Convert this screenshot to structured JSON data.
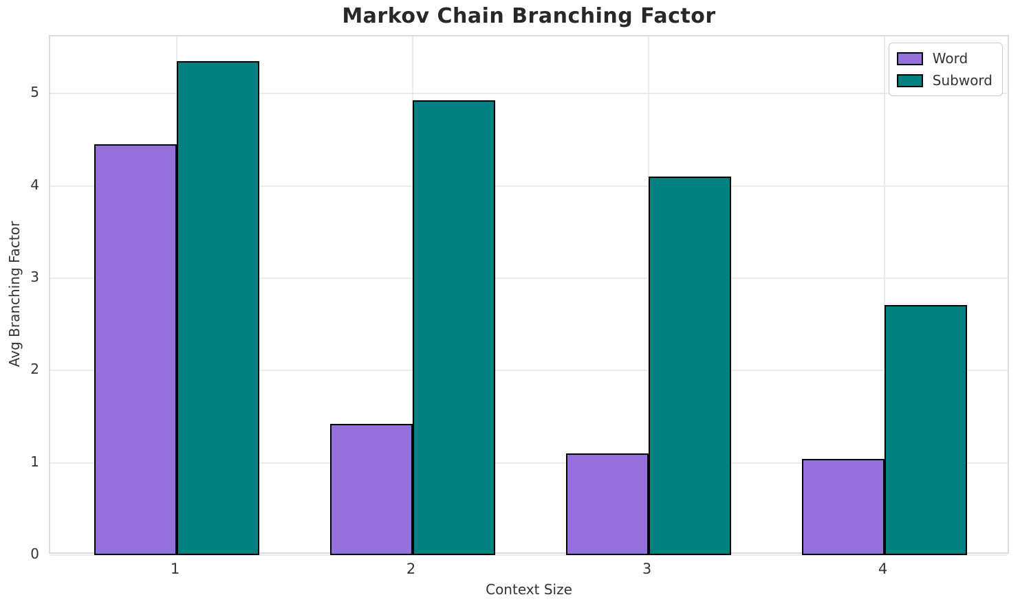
{
  "chart_data": {
    "type": "bar",
    "title": "Markov Chain Branching Factor",
    "xlabel": "Context Size",
    "ylabel": "Avg Branching Factor",
    "categories": [
      "1",
      "2",
      "3",
      "4"
    ],
    "series": [
      {
        "name": "Word",
        "color": "#9370DB",
        "values": [
          4.45,
          1.42,
          1.1,
          1.04
        ]
      },
      {
        "name": "Subword",
        "color": "#008080",
        "values": [
          5.35,
          4.93,
          4.1,
          2.71
        ]
      }
    ],
    "ylim": [
      0,
      5.62
    ],
    "yticks": [
      0,
      1,
      2,
      3,
      4,
      5
    ],
    "grid": true,
    "grid_color": "#ebebeb",
    "bar_edge_color": "#000000",
    "legend_position": "upper right",
    "background_color": "#ffffff"
  }
}
